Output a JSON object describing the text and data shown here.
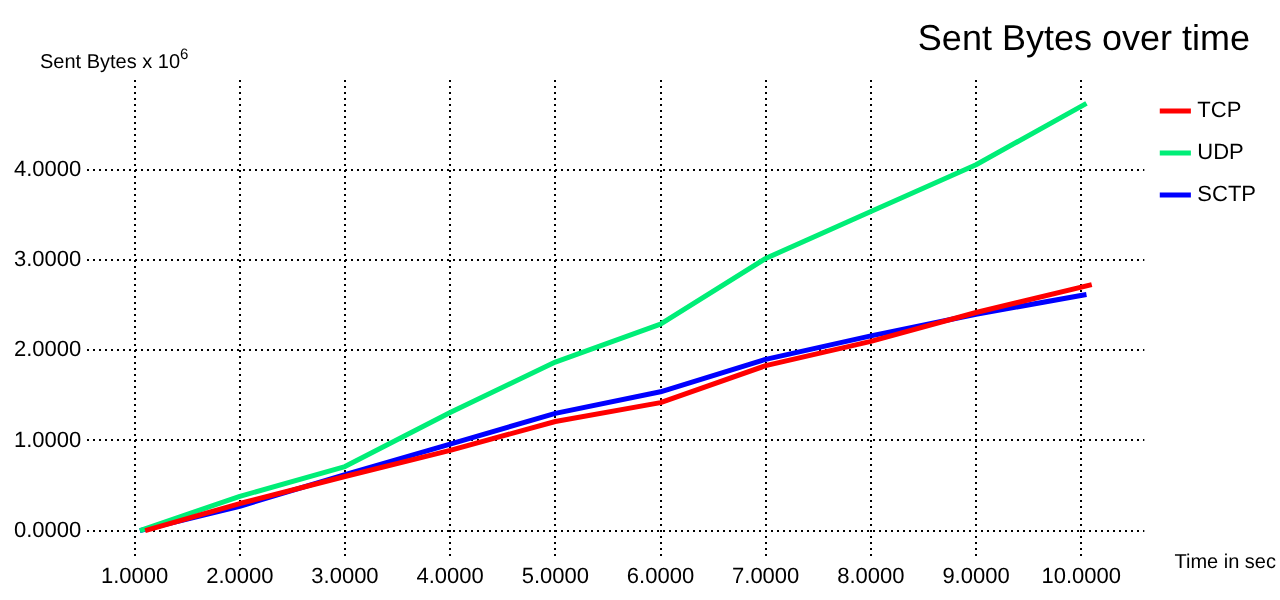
{
  "chart_data": {
    "type": "line",
    "title": "Sent Bytes over time",
    "xlabel": "Time in sec",
    "ylabel": "Sent Bytes x 10$^{6}$",
    "series": [
      {
        "name": "TCP",
        "color": "#ff0000",
        "x": [
          1.1,
          2,
          3,
          4,
          5,
          6,
          7,
          8,
          9,
          10.1
        ],
        "values": [
          0,
          0.3,
          0.6,
          0.89,
          1.21,
          1.42,
          1.83,
          2.1,
          2.42,
          2.73
        ]
      },
      {
        "name": "UDP",
        "color": "#00ee77",
        "x": [
          1.05,
          2,
          3,
          4,
          5,
          6,
          7,
          8,
          9,
          10.05
        ],
        "values": [
          0,
          0.38,
          0.71,
          1.31,
          1.87,
          2.29,
          3.02,
          3.54,
          4.06,
          4.74
        ]
      },
      {
        "name": "SCTP",
        "color": "#0000ff",
        "x": [
          1.05,
          2,
          3,
          4,
          5,
          6,
          7,
          8,
          9,
          10.05
        ],
        "values": [
          0,
          0.27,
          0.62,
          0.96,
          1.3,
          1.54,
          1.9,
          2.16,
          2.4,
          2.62
        ]
      }
    ],
    "xlim": [
      0.55,
      10.6
    ],
    "ylim": [
      -0.3,
      5.0
    ],
    "xticks": [
      {
        "value": 1,
        "label": "1.0000"
      },
      {
        "value": 2,
        "label": "2.0000"
      },
      {
        "value": 3,
        "label": "3.0000"
      },
      {
        "value": 4,
        "label": "4.0000"
      },
      {
        "value": 5,
        "label": "5.0000"
      },
      {
        "value": 6,
        "label": "6.0000"
      },
      {
        "value": 7,
        "label": "7.0000"
      },
      {
        "value": 8,
        "label": "8.0000"
      },
      {
        "value": 9,
        "label": "9.0000"
      },
      {
        "value": 10,
        "label": "10.0000"
      }
    ],
    "yticks": [
      {
        "value": 0,
        "label": "0.0000"
      },
      {
        "value": 1,
        "label": "1.0000"
      },
      {
        "value": 2,
        "label": "2.0000"
      },
      {
        "value": 3,
        "label": "3.0000"
      },
      {
        "value": 4,
        "label": "4.0000"
      }
    ],
    "grid": true,
    "legend": "top right",
    "marker": "none",
    "line_style": "solid"
  }
}
